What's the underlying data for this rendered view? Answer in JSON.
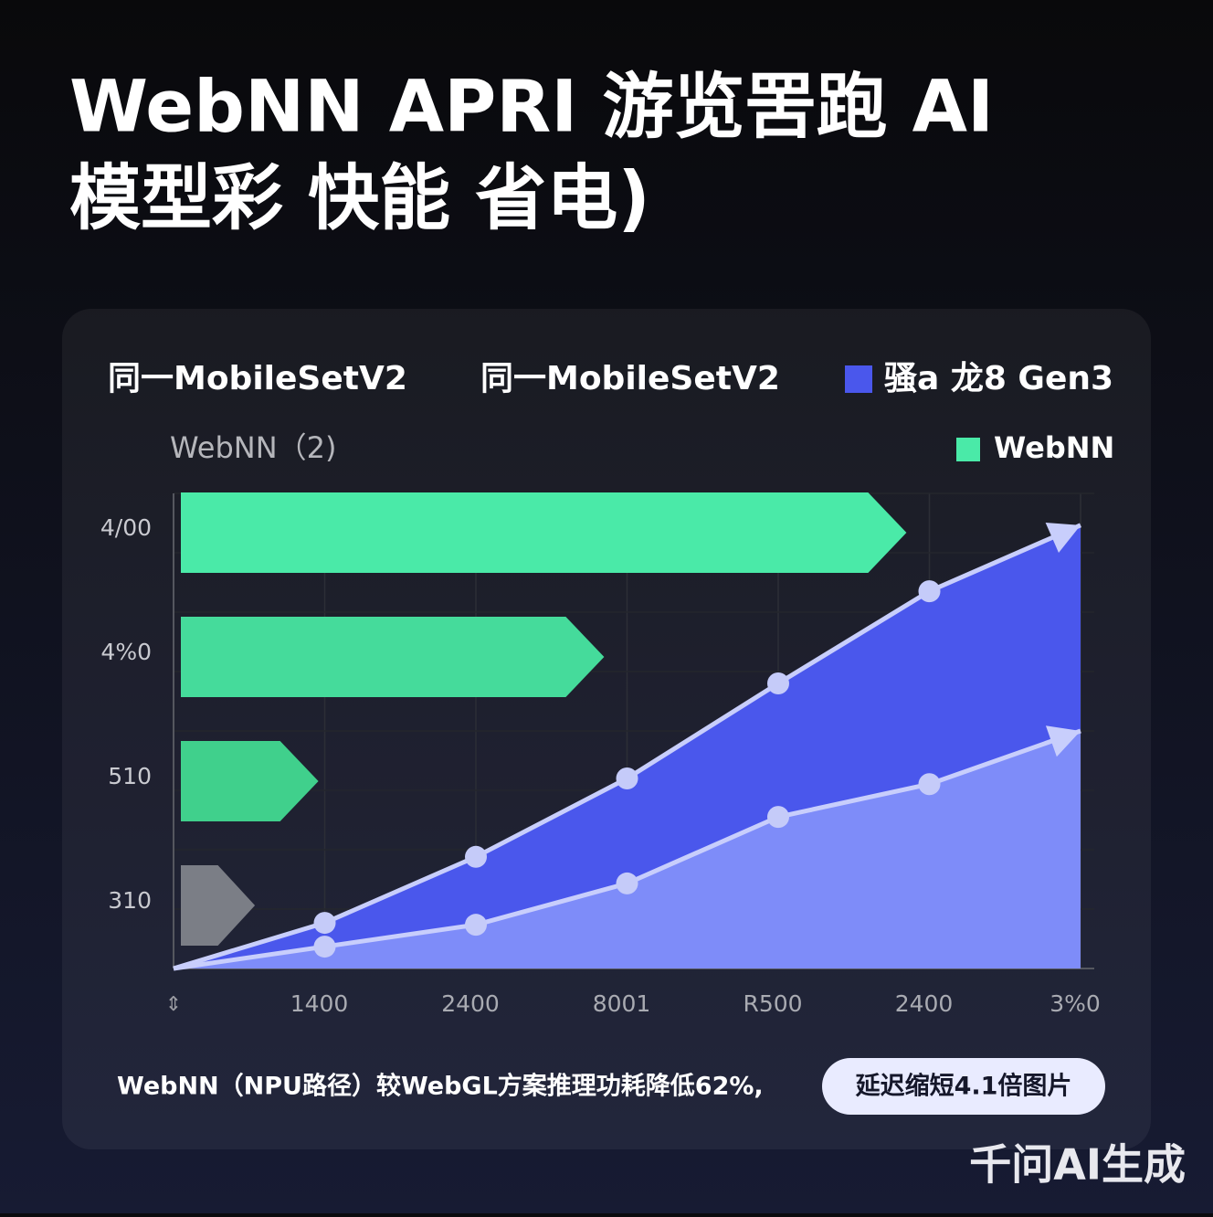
{
  "title": [
    "WebNN APRI 游览罟跑 AI",
    "模型彩 快能 省电)"
  ],
  "header": [
    "同一MobileSetV2",
    "同一MobileSetV2"
  ],
  "subtitle": "WebNN（2)",
  "footer": {
    "text": "WebNN（NPU路径）较WebGL方案推理功耗降低62%,",
    "badge": "延迟缩短4.1倍图片"
  },
  "watermark": "千问AI生成",
  "chart_data": [
    {
      "type": "hbar",
      "name": "WebNN",
      "color": "#4aeaa8",
      "categories": [
        "4/00",
        "4%0",
        "510",
        "310"
      ],
      "values": [
        4.8,
        2.8,
        0.91,
        0.49
      ],
      "colors": [
        "#4aeaa8",
        "#45db9b",
        "#40d08c",
        "#7b7e86"
      ],
      "xlim": [
        0,
        6
      ]
    },
    {
      "type": "area",
      "grid": true,
      "categories": [
        null,
        "1400",
        "2400",
        "8001",
        "R500",
        "2400",
        "3%0"
      ],
      "ylim": [
        0,
        100
      ],
      "series": [
        {
          "name": "骚a 龙8 Gen3",
          "color": "#4a57ec",
          "values": [
            0,
            9.6,
            23.5,
            40,
            60,
            79.4,
            93.3
          ]
        },
        {
          "color": "#8795fb",
          "values": [
            0,
            4.6,
            9.2,
            17.9,
            31.9,
            38.8,
            50
          ]
        }
      ]
    }
  ]
}
